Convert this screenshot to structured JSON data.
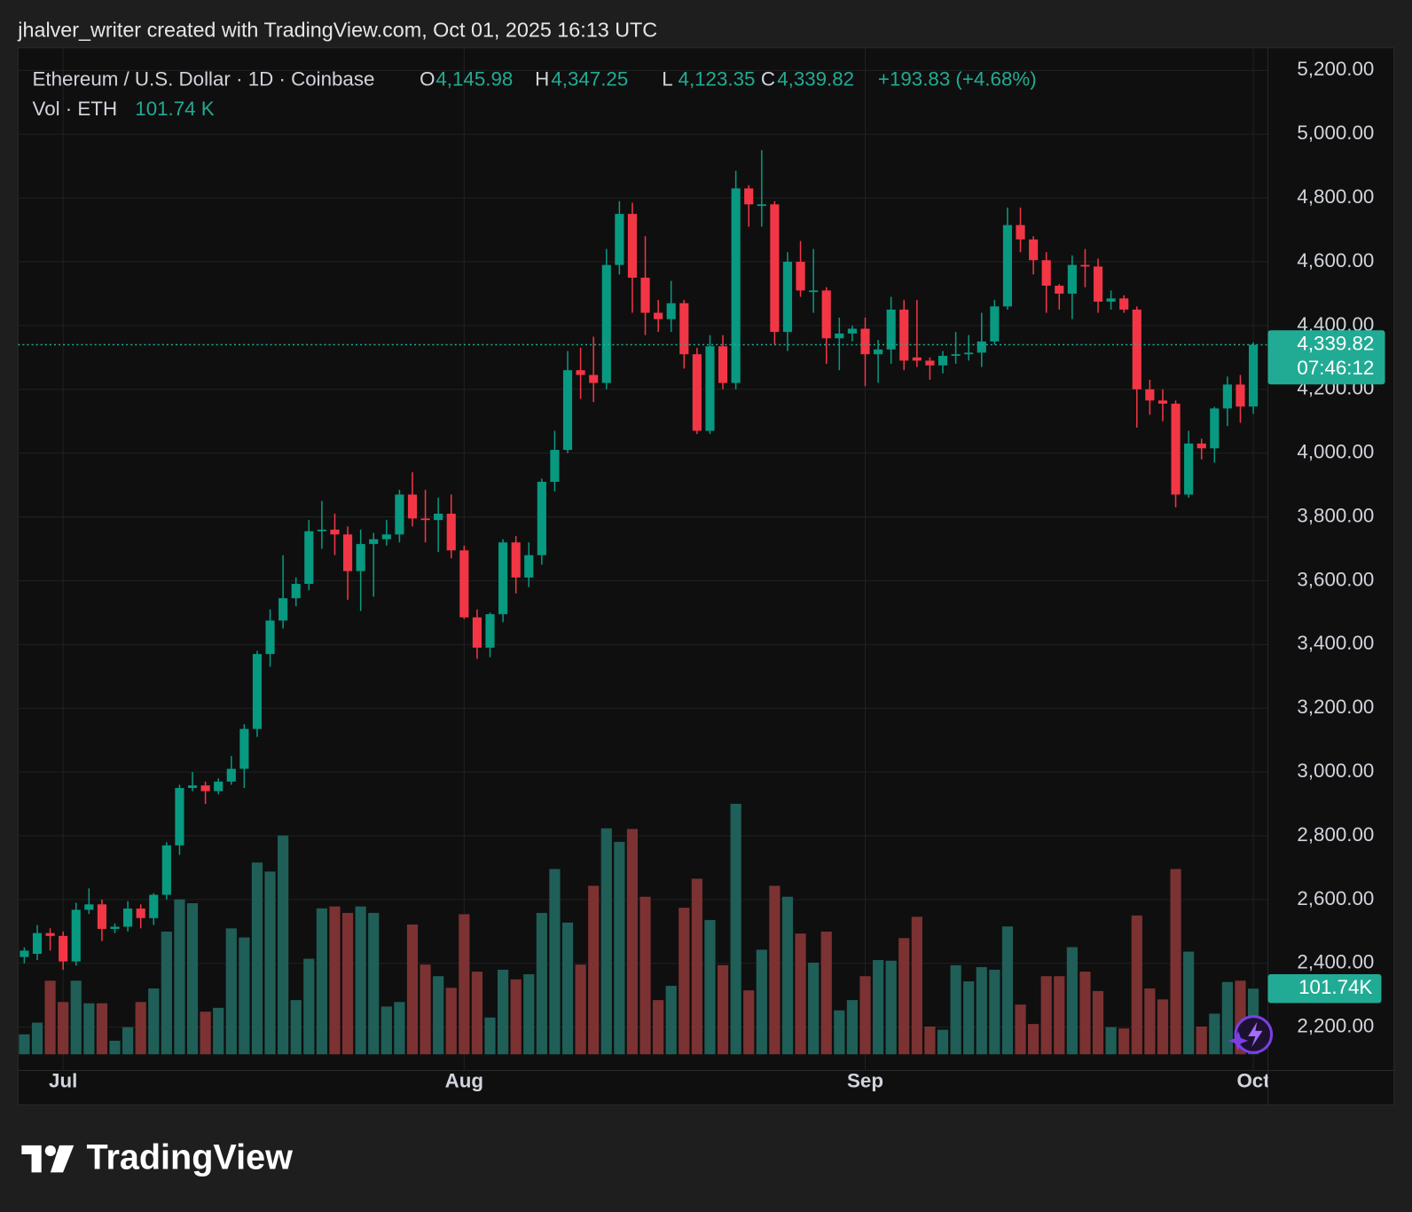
{
  "header": {
    "credit": "jhalver_writer created with TradingView.com, Oct 01, 2025 16:13 UTC"
  },
  "footer": {
    "brand": "TradingView"
  },
  "chart_data": {
    "type": "candlestick",
    "title": "Ethereum / U.S. Dollar · 1D · Coinbase",
    "legend": [
      {
        "key": "O",
        "label": "4,145.98"
      },
      {
        "key": "H",
        "label": "4,347.25"
      },
      {
        "key": "L",
        "label": "4,123.35"
      },
      {
        "key": "C",
        "label": "4,339.82"
      }
    ],
    "change": "+193.83 (+4.68%)",
    "categories": [
      null,
      null,
      null,
      "Jul",
      null,
      null,
      null,
      null,
      null,
      null,
      null,
      null,
      null,
      null,
      null,
      null,
      null,
      null,
      null,
      null,
      null,
      null,
      null,
      null,
      null,
      null,
      null,
      null,
      null,
      null,
      null,
      null,
      null,
      null,
      "Aug",
      null,
      null,
      null,
      null,
      null,
      null,
      null,
      null,
      null,
      null,
      null,
      null,
      null,
      null,
      null,
      null,
      null,
      null,
      null,
      null,
      null,
      null,
      null,
      null,
      null,
      null,
      null,
      null,
      null,
      null,
      "Sep",
      null,
      null,
      null,
      null,
      null,
      null,
      null,
      null,
      null,
      null,
      null,
      null,
      null,
      null,
      null,
      null,
      null,
      null,
      null,
      null,
      null,
      null,
      null,
      null,
      null,
      null,
      null,
      null,
      null,
      "Oct"
    ],
    "open": [
      2420,
      2430,
      2495,
      2486,
      2406,
      2568,
      2585,
      2508,
      2515,
      2572,
      2542,
      2615,
      2770,
      2950,
      2958,
      2940,
      2970,
      3010,
      3135,
      3370,
      3475,
      3545,
      3590,
      3755,
      3760,
      3745,
      3630,
      3715,
      3730,
      3745,
      3870,
      3795,
      3790,
      3810,
      3695,
      3485,
      3390,
      3495,
      3720,
      3610,
      3680,
      3910,
      4010,
      4260,
      4245,
      4220,
      4590,
      4750,
      4550,
      4440,
      4420,
      4470,
      4310,
      4070,
      4335,
      4220,
      4830,
      4775,
      4780,
      4380,
      4600,
      4505,
      4510,
      4360,
      4375,
      4390,
      4310,
      4325,
      4450,
      4300,
      4290,
      4275,
      4305,
      4310,
      4315,
      4350,
      4460,
      4715,
      4670,
      4605,
      4525,
      4500,
      4590,
      4585,
      4475,
      4485,
      4450,
      4200,
      4165,
      4155,
      3870,
      4030,
      4015,
      4140,
      4215,
      4145.98
    ],
    "high": [
      2450,
      2520,
      2510,
      2500,
      2590,
      2635,
      2600,
      2525,
      2595,
      2585,
      2620,
      2780,
      2960,
      3000,
      2970,
      2980,
      3050,
      3150,
      3380,
      3510,
      3680,
      3610,
      3790,
      3850,
      3810,
      3770,
      3760,
      3750,
      3790,
      3885,
      3940,
      3885,
      3860,
      3870,
      3710,
      3510,
      3500,
      3730,
      3740,
      3720,
      3920,
      4070,
      4320,
      4330,
      4365,
      4640,
      4790,
      4785,
      4680,
      4480,
      4540,
      4480,
      4330,
      4370,
      4370,
      4885,
      4840,
      4950,
      4790,
      4630,
      4665,
      4640,
      4520,
      4425,
      4400,
      4425,
      4355,
      4490,
      4480,
      4480,
      4300,
      4320,
      4380,
      4370,
      4440,
      4480,
      4770,
      4770,
      4680,
      4630,
      4530,
      4620,
      4640,
      4610,
      4510,
      4495,
      4460,
      4230,
      4200,
      4165,
      4070,
      4045,
      4145,
      4240,
      4245,
      4347.25
    ],
    "low": [
      2400,
      2410,
      2440,
      2380,
      2393,
      2555,
      2470,
      2495,
      2500,
      2510,
      2520,
      2600,
      2740,
      2940,
      2900,
      2930,
      2960,
      2950,
      3110,
      3330,
      3450,
      3520,
      3570,
      3700,
      3680,
      3540,
      3505,
      3550,
      3710,
      3720,
      3770,
      3720,
      3690,
      3670,
      3480,
      3355,
      3360,
      3470,
      3560,
      3580,
      3650,
      3880,
      4000,
      4170,
      4160,
      4200,
      4560,
      4440,
      4370,
      4380,
      4380,
      4265,
      4060,
      4060,
      4200,
      4200,
      4710,
      4710,
      4340,
      4320,
      4490,
      4440,
      4280,
      4260,
      4350,
      4210,
      4220,
      4280,
      4260,
      4270,
      4230,
      4250,
      4280,
      4290,
      4270,
      4340,
      4450,
      4630,
      4560,
      4440,
      4450,
      4420,
      4520,
      4440,
      4450,
      4440,
      4080,
      4120,
      4100,
      3830,
      3860,
      3980,
      3970,
      4085,
      4095,
      4123.35
    ],
    "close": [
      2440,
      2495,
      2486,
      2406,
      2568,
      2585,
      2508,
      2515,
      2572,
      2542,
      2615,
      2770,
      2950,
      2958,
      2940,
      2970,
      3010,
      3135,
      3370,
      3475,
      3545,
      3590,
      3755,
      3760,
      3745,
      3630,
      3715,
      3730,
      3745,
      3870,
      3795,
      3790,
      3810,
      3695,
      3485,
      3390,
      3495,
      3720,
      3610,
      3680,
      3910,
      4010,
      4260,
      4245,
      4220,
      4590,
      4750,
      4550,
      4440,
      4420,
      4470,
      4310,
      4070,
      4335,
      4220,
      4830,
      4780,
      4780,
      4380,
      4600,
      4510,
      4510,
      4360,
      4375,
      4390,
      4310,
      4325,
      4450,
      4290,
      4290,
      4275,
      4305,
      4310,
      4315,
      4350,
      4460,
      4715,
      4670,
      4605,
      4525,
      4500,
      4590,
      4585,
      4475,
      4485,
      4450,
      4200,
      4165,
      4155,
      3870,
      4030,
      4015,
      4140,
      4215,
      4146,
      4339.82
    ],
    "volume": {
      "label": "Vol · ETH",
      "last_label": "101.74 K",
      "tag_label": "101.74K",
      "values": [
        31,
        49,
        114,
        81,
        114,
        79,
        79,
        21,
        42,
        81,
        102,
        190,
        240,
        234,
        66,
        72,
        195,
        181,
        297,
        283,
        339,
        84,
        148,
        226,
        229,
        219,
        229,
        219,
        74,
        81,
        201,
        139,
        121,
        103,
        217,
        128,
        57,
        131,
        116,
        124,
        219,
        287,
        204,
        139,
        261,
        350,
        329,
        349,
        244,
        84,
        106,
        227,
        272,
        208,
        138,
        388,
        99,
        162,
        261,
        244,
        187,
        142,
        190,
        68,
        84,
        121,
        146,
        145,
        180,
        213,
        43,
        38,
        138,
        113,
        135,
        131,
        198,
        77,
        47,
        121,
        121,
        166,
        128,
        98,
        42,
        40,
        215,
        102,
        85,
        287,
        159,
        43,
        63,
        112,
        114,
        101.74
      ]
    },
    "price_tag": {
      "value": 4339.82,
      "label": "4,339.82",
      "countdown": "07:46:12"
    },
    "ylim": [
      2064,
      5271
    ],
    "yticks": [
      {
        "value": 2200,
        "label": "2,200.00"
      },
      {
        "value": 2400,
        "label": "2,400.00"
      },
      {
        "value": 2600,
        "label": "2,600.00"
      },
      {
        "value": 2800,
        "label": "2,800.00"
      },
      {
        "value": 3000,
        "label": "3,000.00"
      },
      {
        "value": 3200,
        "label": "3,200.00"
      },
      {
        "value": 3400,
        "label": "3,400.00"
      },
      {
        "value": 3600,
        "label": "3,600.00"
      },
      {
        "value": 3800,
        "label": "3,800.00"
      },
      {
        "value": 4000,
        "label": "4,000.00"
      },
      {
        "value": 4200,
        "label": "4,200.00"
      },
      {
        "value": 4400,
        "label": "4,400.00"
      },
      {
        "value": 4600,
        "label": "4,600.00"
      },
      {
        "value": 4800,
        "label": "4,800.00"
      },
      {
        "value": 5000,
        "label": "5,000.00"
      },
      {
        "value": 5200,
        "label": "5,200.00"
      }
    ],
    "grid": true,
    "up_color": "#089981",
    "down_color": "#f23645",
    "vol_up_color": "#1f5f58",
    "vol_down_color": "#7c3232",
    "legend_value_color": "#22ab94"
  }
}
